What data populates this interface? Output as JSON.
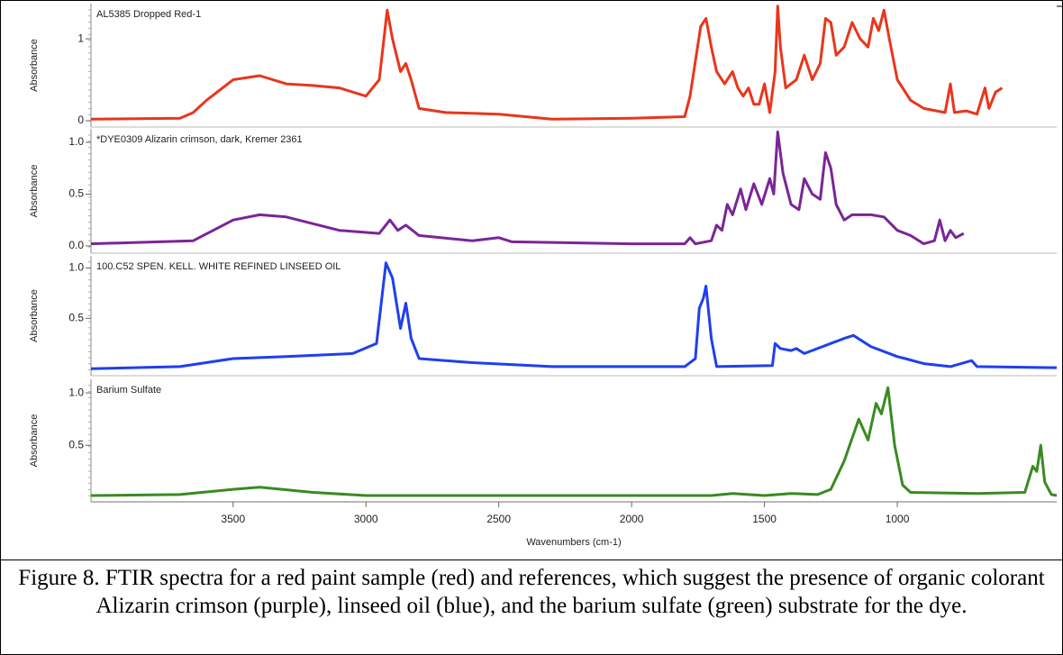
{
  "caption": "Figure 8. FTIR spectra for a red paint sample (red) and references, which suggest the presence of organic colorant Alizarin crimson (purple), linseed oil (blue), and the barium sulfate (green) substrate for the dye.",
  "chart_data": [
    {
      "type": "line",
      "title": "AL5385 Dropped Red-1",
      "y_label": "Absorbance",
      "color": "#e8361c",
      "xlim": [
        4035,
        400
      ],
      "ylim": [
        -0.077,
        1.43
      ],
      "yticks": [
        0,
        1
      ],
      "x": [
        4035,
        3700,
        3650,
        3600,
        3500,
        3400,
        3300,
        3200,
        3100,
        3000,
        2950,
        2920,
        2900,
        2870,
        2850,
        2830,
        2800,
        2700,
        2500,
        2300,
        2000,
        1800,
        1780,
        1740,
        1720,
        1700,
        1680,
        1650,
        1620,
        1600,
        1580,
        1560,
        1540,
        1520,
        1500,
        1480,
        1460,
        1450,
        1440,
        1420,
        1380,
        1350,
        1320,
        1290,
        1270,
        1250,
        1230,
        1200,
        1170,
        1140,
        1110,
        1090,
        1070,
        1050,
        1030,
        1000,
        950,
        900,
        820,
        800,
        785,
        740,
        700,
        670,
        655,
        630,
        605
      ],
      "values": [
        0.02,
        0.03,
        0.1,
        0.25,
        0.5,
        0.55,
        0.45,
        0.43,
        0.4,
        0.3,
        0.5,
        1.35,
        1.0,
        0.6,
        0.7,
        0.5,
        0.15,
        0.1,
        0.08,
        0.02,
        0.03,
        0.05,
        0.3,
        1.15,
        1.25,
        0.9,
        0.6,
        0.45,
        0.6,
        0.4,
        0.3,
        0.4,
        0.2,
        0.2,
        0.45,
        0.1,
        0.6,
        1.4,
        0.9,
        0.4,
        0.5,
        0.8,
        0.5,
        0.7,
        1.25,
        1.2,
        0.8,
        0.9,
        1.2,
        1.0,
        0.9,
        1.25,
        1.1,
        1.35,
        1.0,
        0.5,
        0.25,
        0.15,
        0.1,
        0.45,
        0.1,
        0.12,
        0.08,
        0.4,
        0.15,
        0.35,
        0.4
      ]
    },
    {
      "type": "line",
      "title": "*DYE0309 Alizarin crimson, dark, Kremer 2361",
      "y_label": "Absorbance",
      "color": "#7b2597",
      "xlim": [
        4035,
        400
      ],
      "ylim": [
        -0.07,
        1.13
      ],
      "yticks": [
        {
          "value": 1,
          "label": "1.0"
        },
        0.5,
        {
          "value": 0,
          "label": "0.0"
        }
      ],
      "x": [
        4035,
        3650,
        3500,
        3400,
        3300,
        3100,
        2950,
        2910,
        2880,
        2850,
        2800,
        2600,
        2500,
        2450,
        2000,
        1800,
        1780,
        1760,
        1700,
        1680,
        1660,
        1640,
        1620,
        1590,
        1570,
        1540,
        1510,
        1480,
        1465,
        1450,
        1430,
        1400,
        1370,
        1350,
        1320,
        1290,
        1270,
        1250,
        1230,
        1200,
        1170,
        1100,
        1050,
        1000,
        950,
        900,
        860,
        840,
        820,
        800,
        780,
        750
      ],
      "values": [
        0.02,
        0.05,
        0.25,
        0.3,
        0.28,
        0.15,
        0.12,
        0.25,
        0.15,
        0.2,
        0.1,
        0.05,
        0.08,
        0.04,
        0.02,
        0.02,
        0.08,
        0.02,
        0.05,
        0.2,
        0.15,
        0.4,
        0.3,
        0.55,
        0.35,
        0.6,
        0.4,
        0.65,
        0.5,
        1.1,
        0.7,
        0.4,
        0.35,
        0.65,
        0.5,
        0.45,
        0.9,
        0.75,
        0.4,
        0.25,
        0.3,
        0.3,
        0.28,
        0.15,
        0.1,
        0.02,
        0.05,
        0.25,
        0.05,
        0.15,
        0.08,
        0.12
      ]
    },
    {
      "type": "line",
      "title": "100.C52 SPEN. KELL. WHITE REFINED LINSEED OIL",
      "y_label": "Absorbance",
      "color": "#1f3ff0",
      "xlim": [
        4035,
        400
      ],
      "ylim": [
        -0.07,
        1.12
      ],
      "yticks": [
        {
          "value": 1,
          "label": "1.0"
        },
        0.5
      ],
      "x": [
        4035,
        3700,
        3500,
        3300,
        3050,
        2960,
        2925,
        2900,
        2870,
        2850,
        2830,
        2800,
        2600,
        2300,
        1800,
        1760,
        1745,
        1730,
        1720,
        1700,
        1680,
        1470,
        1460,
        1440,
        1400,
        1380,
        1350,
        1250,
        1200,
        1165,
        1100,
        1000,
        970,
        900,
        800,
        720,
        700,
        400
      ],
      "values": [
        0.0,
        0.02,
        0.1,
        0.12,
        0.15,
        0.25,
        1.05,
        0.9,
        0.4,
        0.65,
        0.3,
        0.1,
        0.06,
        0.02,
        0.02,
        0.1,
        0.6,
        0.7,
        0.82,
        0.3,
        0.02,
        0.03,
        0.25,
        0.2,
        0.18,
        0.2,
        0.15,
        0.25,
        0.3,
        0.33,
        0.22,
        0.12,
        0.1,
        0.05,
        0.02,
        0.08,
        0.02,
        0.01
      ]
    },
    {
      "type": "line",
      "title": "Barium Sulfate",
      "y_label": "Absorbance",
      "color": "#3a8a22",
      "xlim": [
        4035,
        400
      ],
      "ylim": [
        -0.04,
        1.13
      ],
      "yticks": [
        {
          "value": 1,
          "label": "1.0"
        },
        0.5
      ],
      "xticks": [
        3500,
        3000,
        2500,
        2000,
        1500,
        1000
      ],
      "x_label": "Wavenumbers (cm-1)",
      "x": [
        4035,
        3700,
        3500,
        3400,
        3200,
        3000,
        1700,
        1620,
        1500,
        1400,
        1300,
        1250,
        1200,
        1145,
        1110,
        1080,
        1060,
        1035,
        1010,
        980,
        950,
        700,
        520,
        490,
        475,
        460,
        445,
        420,
        400
      ],
      "values": [
        0.02,
        0.03,
        0.08,
        0.1,
        0.05,
        0.02,
        0.02,
        0.04,
        0.02,
        0.04,
        0.03,
        0.08,
        0.35,
        0.75,
        0.55,
        0.9,
        0.8,
        1.05,
        0.5,
        0.12,
        0.05,
        0.04,
        0.05,
        0.3,
        0.25,
        0.5,
        0.15,
        0.03,
        0.02
      ]
    }
  ]
}
